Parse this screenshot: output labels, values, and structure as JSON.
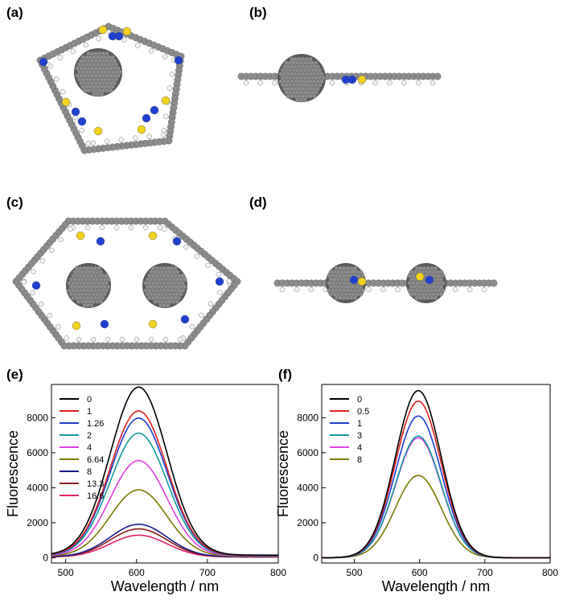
{
  "panels": {
    "a": "(a)",
    "b": "(b)",
    "c": "(c)",
    "d": "(d)",
    "e": "(e)",
    "f": "(f)"
  },
  "colors": {
    "carbon": "#8c8c8c",
    "carbon_dark": "#5a5a5a",
    "hydrogen": "#f4f4f4",
    "nitrogen": "#1f3fd0",
    "sulfur": "#f2d21b"
  },
  "chart_data": [
    {
      "panel": "(e)",
      "type": "line",
      "xlabel": "Wavelength / nm",
      "ylabel": "Fluorescence",
      "xlim": [
        480,
        800
      ],
      "ylim": [
        -300,
        9900
      ],
      "xticks": [
        500,
        600,
        700,
        800
      ],
      "yticks": [
        0,
        2000,
        4000,
        6000,
        8000
      ],
      "legend_position": "top-left",
      "series": [
        {
          "name": "0",
          "color": "#000000",
          "peak": 9600,
          "center": 603,
          "sigma": 40,
          "baseline": 150
        },
        {
          "name": "1",
          "color": "#e02020",
          "peak": 8250,
          "center": 603,
          "sigma": 40,
          "baseline": 140
        },
        {
          "name": "1.26",
          "color": "#1f3fd0",
          "peak": 7850,
          "center": 603,
          "sigma": 40,
          "baseline": 130
        },
        {
          "name": "2",
          "color": "#139a9a",
          "peak": 7000,
          "center": 603,
          "sigma": 40,
          "baseline": 120
        },
        {
          "name": "4",
          "color": "#e040e0",
          "peak": 5450,
          "center": 603,
          "sigma": 40,
          "baseline": 100
        },
        {
          "name": "6.64",
          "color": "#7a7a00",
          "peak": 3800,
          "center": 603,
          "sigma": 40,
          "baseline": 80
        },
        {
          "name": "8",
          "color": "#1a1a8c",
          "peak": 1850,
          "center": 603,
          "sigma": 40,
          "baseline": 60
        },
        {
          "name": "13.3",
          "color": "#8a1a1a",
          "peak": 1600,
          "center": 603,
          "sigma": 40,
          "baseline": 50
        },
        {
          "name": "16.6",
          "color": "#e0206a",
          "peak": 1250,
          "center": 603,
          "sigma": 40,
          "baseline": 40
        }
      ]
    },
    {
      "panel": "(f)",
      "type": "line",
      "xlabel": "Wavelength / nm",
      "ylabel": "Fluorescence",
      "xlim": [
        450,
        800
      ],
      "ylim": [
        -300,
        9900
      ],
      "xticks": [
        500,
        600,
        700,
        800
      ],
      "yticks": [
        0,
        2000,
        4000,
        6000,
        8000
      ],
      "legend_position": "top-left",
      "series": [
        {
          "name": "0",
          "color": "#000000",
          "peak": 9550,
          "center": 598,
          "sigma": 35,
          "baseline": 0
        },
        {
          "name": "0.5",
          "color": "#e02020",
          "peak": 8950,
          "center": 598,
          "sigma": 35,
          "baseline": 0
        },
        {
          "name": "1",
          "color": "#1f3fd0",
          "peak": 8100,
          "center": 598,
          "sigma": 35,
          "baseline": 0
        },
        {
          "name": "3",
          "color": "#139a9a",
          "peak": 6950,
          "center": 598,
          "sigma": 35,
          "baseline": 0
        },
        {
          "name": "4",
          "color": "#e040e0",
          "peak": 6850,
          "center": 598,
          "sigma": 35,
          "baseline": 0
        },
        {
          "name": "8",
          "color": "#7a7a00",
          "peak": 4700,
          "center": 598,
          "sigma": 35,
          "baseline": 0
        }
      ]
    }
  ]
}
